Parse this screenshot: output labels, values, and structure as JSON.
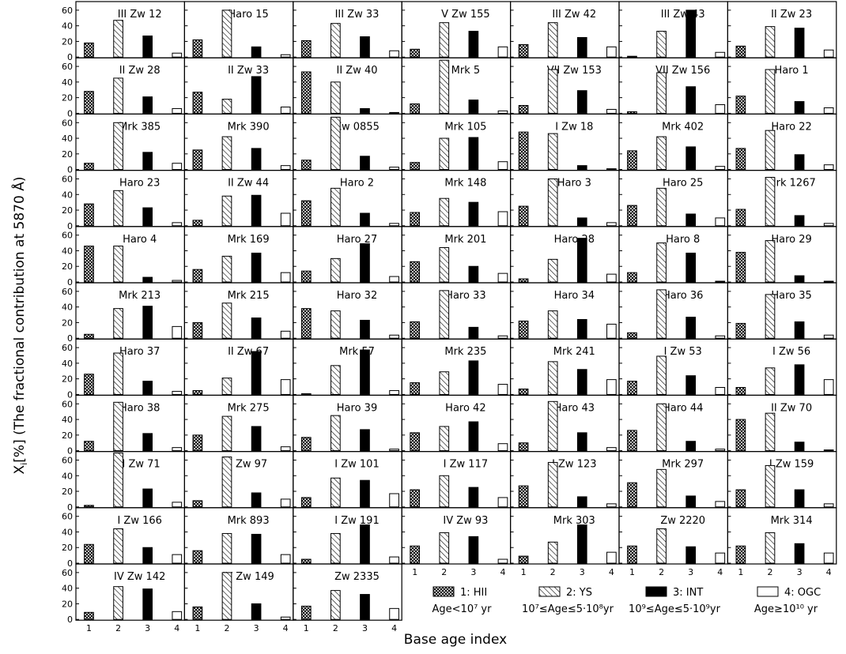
{
  "figure": {
    "ylabel_main": "X",
    "ylabel_sub": "i",
    "ylabel_rest": "[%] (The fractional contribution at 5870 Å)",
    "xlabel": "Base age index"
  },
  "chart_data": {
    "type": "bar",
    "categories": [
      "1",
      "2",
      "3",
      "4"
    ],
    "ylim": [
      0,
      70
    ],
    "yticks": [
      "0",
      "20",
      "40",
      "60"
    ],
    "legend": [
      {
        "label": "1: HII",
        "range": "Age<10⁷ yr",
        "fill": "crosshatch"
      },
      {
        "label": "2: YS",
        "range": "10⁷≤Age≤5·10⁸yr",
        "fill": "hatch"
      },
      {
        "label": "3: INT",
        "range": "10⁹≤Age≤5·10⁹yr",
        "fill": "solid"
      },
      {
        "label": "4: OGC",
        "range": "Age≥10¹⁰ yr",
        "fill": "open"
      }
    ],
    "panels": [
      {
        "name": "III Zw 12",
        "values": [
          18,
          47,
          27,
          5
        ]
      },
      {
        "name": "Haro 15",
        "values": [
          22,
          60,
          13,
          3
        ]
      },
      {
        "name": "III Zw 33",
        "values": [
          21,
          43,
          26,
          8
        ]
      },
      {
        "name": "V Zw 155",
        "values": [
          10,
          44,
          33,
          13
        ]
      },
      {
        "name": "III Zw 42",
        "values": [
          16,
          44,
          25,
          13
        ]
      },
      {
        "name": "III Zw 43",
        "values": [
          1,
          33,
          60,
          6
        ]
      },
      {
        "name": "II Zw 23",
        "values": [
          14,
          39,
          37,
          9
        ]
      },
      {
        "name": "II Zw 28",
        "values": [
          28,
          45,
          21,
          6
        ]
      },
      {
        "name": "II Zw 33",
        "values": [
          27,
          18,
          47,
          8
        ]
      },
      {
        "name": "II Zw 40",
        "values": [
          53,
          40,
          6,
          1
        ]
      },
      {
        "name": "Mrk 5",
        "values": [
          12,
          68,
          17,
          3
        ]
      },
      {
        "name": "VII Zw 153",
        "values": [
          10,
          56,
          29,
          5
        ]
      },
      {
        "name": "VII Zw 156",
        "values": [
          2,
          52,
          34,
          11
        ]
      },
      {
        "name": "Haro 1",
        "values": [
          22,
          56,
          15,
          7
        ]
      },
      {
        "name": "Mrk 385",
        "values": [
          8,
          60,
          22,
          8
        ]
      },
      {
        "name": "Mrk 390",
        "values": [
          25,
          42,
          27,
          5
        ]
      },
      {
        "name": "Zw 0855",
        "values": [
          12,
          67,
          17,
          3
        ]
      },
      {
        "name": "Mrk 105",
        "values": [
          9,
          40,
          41,
          10
        ]
      },
      {
        "name": "I Zw 18",
        "values": [
          48,
          46,
          5,
          1
        ]
      },
      {
        "name": "Mrk 402",
        "values": [
          24,
          42,
          29,
          4
        ]
      },
      {
        "name": "Haro 22",
        "values": [
          27,
          50,
          19,
          6
        ]
      },
      {
        "name": "Haro 23",
        "values": [
          28,
          45,
          23,
          4
        ]
      },
      {
        "name": "II Zw 44",
        "values": [
          7,
          38,
          39,
          16
        ]
      },
      {
        "name": "Haro 2",
        "values": [
          32,
          48,
          16,
          3
        ]
      },
      {
        "name": "Mrk 148",
        "values": [
          17,
          35,
          30,
          18
        ]
      },
      {
        "name": "Haro 3",
        "values": [
          25,
          60,
          10,
          4
        ]
      },
      {
        "name": "Haro 25",
        "values": [
          26,
          48,
          15,
          10
        ]
      },
      {
        "name": "Mrk 1267",
        "values": [
          21,
          62,
          13,
          3
        ]
      },
      {
        "name": "Haro 4",
        "values": [
          46,
          46,
          6,
          2
        ]
      },
      {
        "name": "Mrk 169",
        "values": [
          16,
          33,
          37,
          12
        ]
      },
      {
        "name": "Haro 27",
        "values": [
          14,
          30,
          49,
          7
        ]
      },
      {
        "name": "Mrk 201",
        "values": [
          26,
          44,
          20,
          11
        ]
      },
      {
        "name": "Haro 28",
        "values": [
          4,
          29,
          56,
          10
        ]
      },
      {
        "name": "Haro 8",
        "values": [
          12,
          50,
          37,
          1
        ]
      },
      {
        "name": "Haro 29",
        "values": [
          38,
          53,
          8,
          1
        ]
      },
      {
        "name": "Mrk 213",
        "values": [
          5,
          38,
          41,
          15
        ]
      },
      {
        "name": "Mrk 215",
        "values": [
          20,
          45,
          26,
          9
        ]
      },
      {
        "name": "Haro 32",
        "values": [
          38,
          35,
          23,
          4
        ]
      },
      {
        "name": "Haro 33",
        "values": [
          21,
          61,
          14,
          3
        ]
      },
      {
        "name": "Haro 34",
        "values": [
          22,
          35,
          24,
          18
        ]
      },
      {
        "name": "Haro 36",
        "values": [
          7,
          62,
          27,
          3
        ]
      },
      {
        "name": "Haro 35",
        "values": [
          19,
          56,
          21,
          4
        ]
      },
      {
        "name": "Haro 37",
        "values": [
          26,
          53,
          17,
          4
        ]
      },
      {
        "name": "II Zw 67",
        "values": [
          5,
          21,
          55,
          19
        ]
      },
      {
        "name": "Mrk 57",
        "values": [
          1,
          37,
          57,
          5
        ]
      },
      {
        "name": "Mrk 235",
        "values": [
          15,
          29,
          43,
          13
        ]
      },
      {
        "name": "Mrk 241",
        "values": [
          7,
          42,
          32,
          19
        ]
      },
      {
        "name": "I Zw 53",
        "values": [
          17,
          49,
          24,
          9
        ]
      },
      {
        "name": "I Zw 56",
        "values": [
          9,
          34,
          38,
          19
        ]
      },
      {
        "name": "Haro 38",
        "values": [
          12,
          62,
          22,
          4
        ]
      },
      {
        "name": "Mrk 275",
        "values": [
          20,
          44,
          31,
          5
        ]
      },
      {
        "name": "Haro 39",
        "values": [
          17,
          45,
          27,
          2
        ]
      },
      {
        "name": "Haro 42",
        "values": [
          23,
          31,
          37,
          9
        ]
      },
      {
        "name": "Haro 43",
        "values": [
          10,
          63,
          23,
          4
        ]
      },
      {
        "name": "Haro 44",
        "values": [
          26,
          60,
          12,
          2
        ]
      },
      {
        "name": "II Zw 70",
        "values": [
          40,
          48,
          11,
          1
        ]
      },
      {
        "name": "II Zw 71",
        "values": [
          2,
          69,
          23,
          6
        ]
      },
      {
        "name": "I Zw 97",
        "values": [
          8,
          64,
          18,
          10
        ]
      },
      {
        "name": "I Zw 101",
        "values": [
          12,
          37,
          34,
          17
        ]
      },
      {
        "name": "I Zw 117",
        "values": [
          22,
          40,
          25,
          12
        ]
      },
      {
        "name": "I Zw 123",
        "values": [
          27,
          57,
          13,
          4
        ]
      },
      {
        "name": "Mrk 297",
        "values": [
          31,
          48,
          14,
          7
        ]
      },
      {
        "name": "I Zw 159",
        "values": [
          22,
          53,
          22,
          4
        ]
      },
      {
        "name": "I Zw 166",
        "values": [
          24,
          44,
          20,
          11
        ]
      },
      {
        "name": "Mrk 893",
        "values": [
          16,
          38,
          37,
          11
        ]
      },
      {
        "name": "I Zw 191",
        "values": [
          5,
          38,
          49,
          8
        ]
      },
      {
        "name": "IV Zw 93",
        "values": [
          22,
          39,
          34,
          5
        ]
      },
      {
        "name": "Mrk 303",
        "values": [
          9,
          27,
          49,
          14
        ]
      },
      {
        "name": "Zw 2220",
        "values": [
          22,
          44,
          21,
          13
        ]
      },
      {
        "name": "Mrk 314",
        "values": [
          22,
          39,
          25,
          13
        ]
      },
      {
        "name": "IV Zw 142",
        "values": [
          9,
          42,
          39,
          10
        ]
      },
      {
        "name": "IV Zw 149",
        "values": [
          16,
          60,
          20,
          3
        ]
      },
      {
        "name": "Zw 2335",
        "values": [
          17,
          37,
          32,
          14
        ]
      }
    ]
  }
}
